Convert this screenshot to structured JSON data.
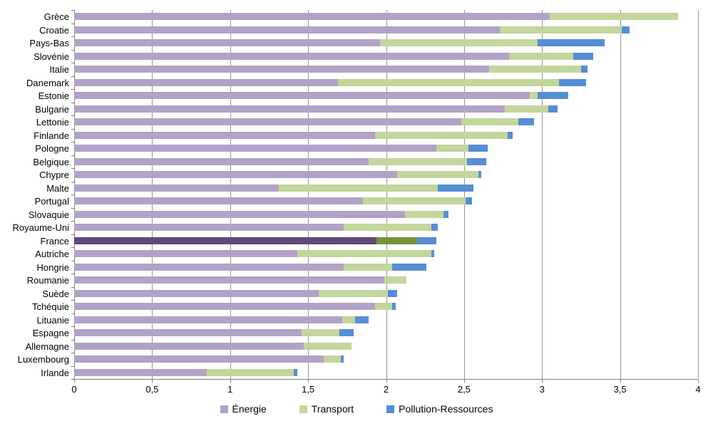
{
  "chart_data": {
    "type": "bar",
    "orientation": "horizontal",
    "stacked": true,
    "title": "",
    "xlabel": "",
    "ylabel": "",
    "xlim": [
      0,
      4
    ],
    "x_ticks": [
      {
        "value": 0,
        "label": "0"
      },
      {
        "value": 0.5,
        "label": "0,5"
      },
      {
        "value": 1,
        "label": "1"
      },
      {
        "value": 1.5,
        "label": "1,5"
      },
      {
        "value": 2,
        "label": "2"
      },
      {
        "value": 2.5,
        "label": "2,5"
      },
      {
        "value": 3,
        "label": "3"
      },
      {
        "value": 3.5,
        "label": "3,5"
      },
      {
        "value": 4,
        "label": "4"
      }
    ],
    "grid": "vertical",
    "legend_position": "bottom",
    "highlight_category": "France",
    "categories": [
      "Grèce",
      "Croatie",
      "Pays-Bas",
      "Slovénie",
      "Italie",
      "Danemark",
      "Estonie",
      "Bulgarie",
      "Lettonie",
      "Finlande",
      "Pologne",
      "Belgique",
      "Chypre",
      "Malte",
      "Portugal",
      "Slovaquie",
      "Royaume-Uni",
      "France",
      "Autriche",
      "Hongrie",
      "Roumanie",
      "Suède",
      "Tchéquie",
      "Lituanie",
      "Espagne",
      "Allemagne",
      "Luxembourg",
      "Irlande"
    ],
    "series": [
      {
        "name": "Énergie",
        "color": "#b2a2c7",
        "highlight_color": "#5f497a",
        "values": [
          3.05,
          2.73,
          1.96,
          2.79,
          2.66,
          1.69,
          2.92,
          2.76,
          2.48,
          1.93,
          2.32,
          1.89,
          2.07,
          1.31,
          1.85,
          2.12,
          1.73,
          1.94,
          1.43,
          1.73,
          1.99,
          1.57,
          1.93,
          1.72,
          1.46,
          1.47,
          1.6,
          0.85
        ]
      },
      {
        "name": "Transport",
        "color": "#c3d69b",
        "highlight_color": "#76933c",
        "values": [
          0.82,
          0.78,
          1.01,
          0.41,
          0.59,
          1.42,
          0.05,
          0.28,
          0.37,
          0.85,
          0.21,
          0.63,
          0.52,
          1.02,
          0.66,
          0.25,
          0.56,
          0.26,
          0.86,
          0.31,
          0.14,
          0.44,
          0.11,
          0.08,
          0.24,
          0.31,
          0.11,
          0.56
        ]
      },
      {
        "name": "Pollution-Ressources",
        "color": "#558ed5",
        "highlight_color": "#558ed5",
        "values": [
          0.0,
          0.05,
          0.43,
          0.13,
          0.04,
          0.17,
          0.2,
          0.06,
          0.1,
          0.03,
          0.12,
          0.12,
          0.02,
          0.23,
          0.04,
          0.03,
          0.04,
          0.12,
          0.02,
          0.22,
          0.0,
          0.06,
          0.02,
          0.09,
          0.09,
          0.0,
          0.02,
          0.02
        ]
      }
    ],
    "colors": {
      "gridline": "#969696",
      "axis": "#808080",
      "text": "#000000",
      "background": "#ffffff"
    }
  }
}
